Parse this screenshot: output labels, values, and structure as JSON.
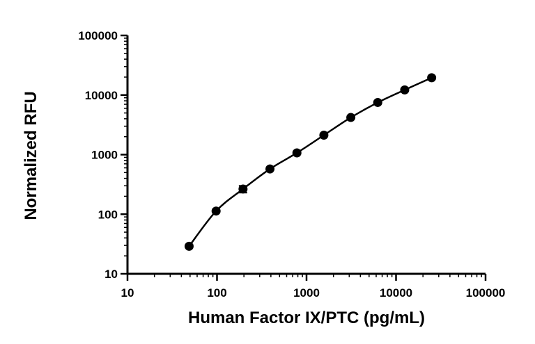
{
  "chart_data": {
    "type": "scatter",
    "title": "",
    "xlabel": "Human Factor IX/PTC (pg/mL)",
    "ylabel": "Normalized RFU",
    "xscale": "log",
    "yscale": "log",
    "xlim": [
      10,
      100000
    ],
    "ylim": [
      10,
      100000
    ],
    "x_ticks": [
      "10",
      "100",
      "1000",
      "10000",
      "100000"
    ],
    "y_ticks": [
      "10",
      "100",
      "1000",
      "10000",
      "100000"
    ],
    "grid": false,
    "legend": "none",
    "marker_color": "#000000",
    "series": [
      {
        "x": [
          48.8,
          97.7,
          195.3,
          390.6,
          781.3,
          1562.5,
          3125,
          6250,
          12500,
          25000
        ],
        "y": [
          29,
          113,
          265,
          575,
          1070,
          2120,
          4200,
          7500,
          12200,
          19500
        ],
        "y_error": [
          0,
          0,
          35,
          0,
          0,
          0,
          0,
          0,
          0,
          0
        ]
      }
    ]
  }
}
